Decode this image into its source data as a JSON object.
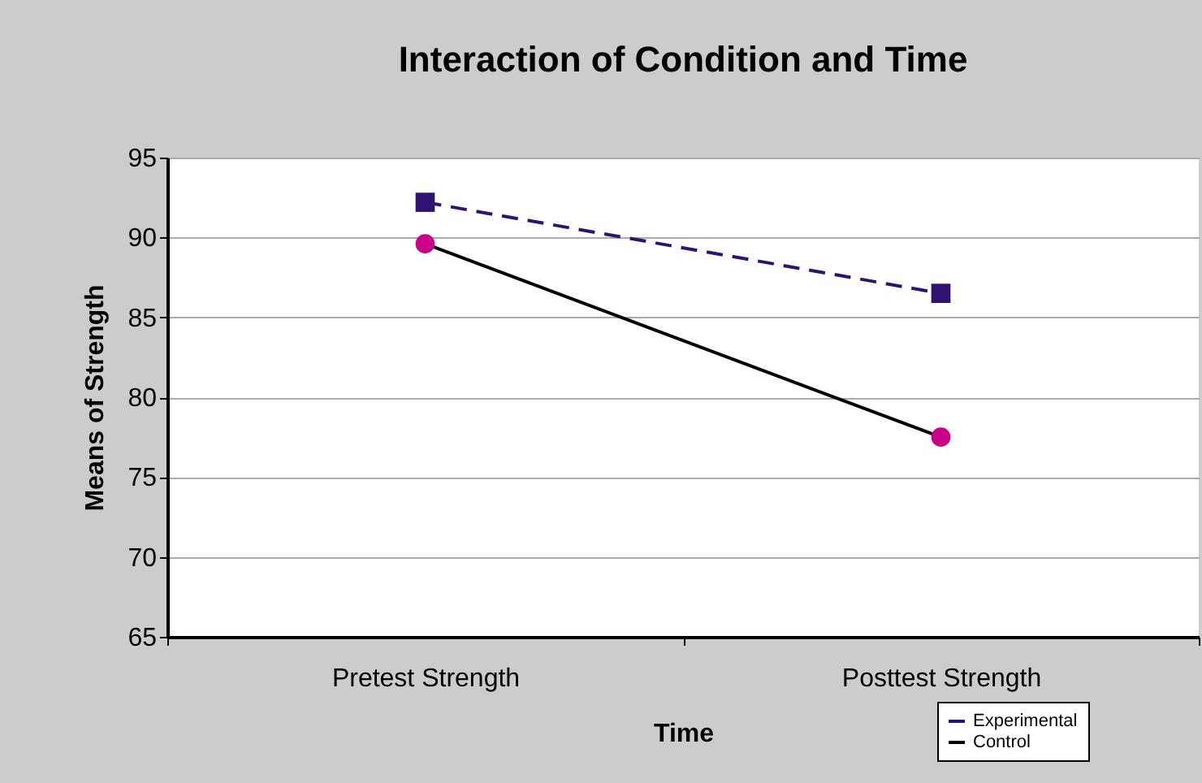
{
  "chart_data": {
    "type": "line",
    "title": "Interaction of Condition and Time",
    "xlabel": "Time",
    "ylabel": "Means of Strength",
    "categories": [
      "Pretest Strength",
      "Posttest Strength"
    ],
    "series": [
      {
        "name": "Experimental",
        "color": "#2e1470",
        "values": [
          92.2,
          86.5
        ],
        "line_style": "dashed",
        "marker": "square"
      },
      {
        "name": "Control",
        "color": "#000000",
        "colors": [
          "#cc0088",
          "#cc0088"
        ],
        "values": [
          89.6,
          77.5
        ],
        "line_style": "solid",
        "marker": "circle"
      }
    ],
    "ylim": [
      65,
      95
    ],
    "yticks": [
      65,
      70,
      75,
      80,
      85,
      90,
      95
    ],
    "grid": "y",
    "legend": "bottom right"
  }
}
